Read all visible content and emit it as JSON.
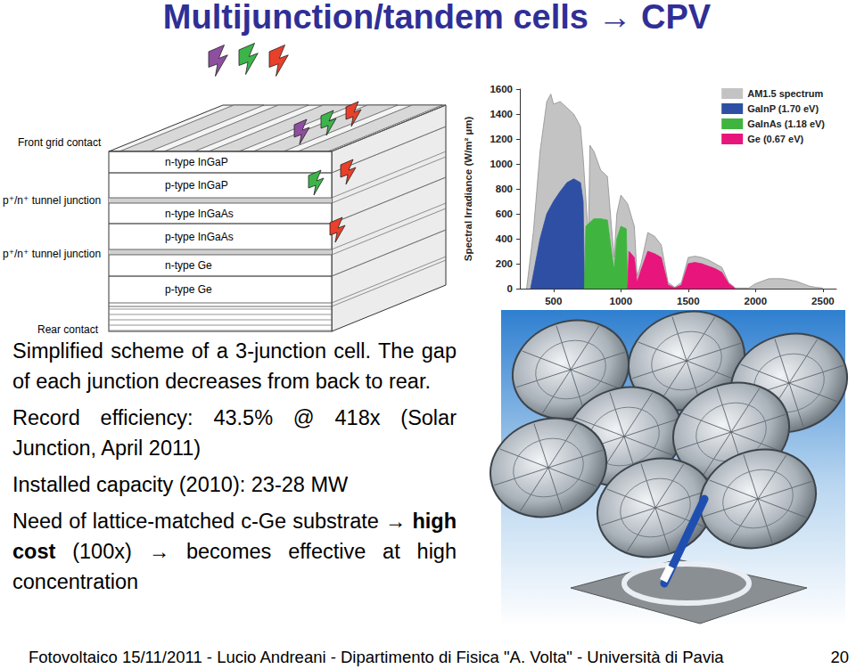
{
  "title": "Multijunction/tandem cells → CPV",
  "diagram": {
    "layers": [
      "n-type InGaP",
      "p-type InGaP",
      "n-type InGaAs",
      "p-type InGaAs",
      "n-type Ge",
      "p-type Ge"
    ],
    "front_label": "Front grid contact",
    "tunnel_labels": [
      "p⁺/n⁺ tunnel junction",
      "p⁺/n⁺ tunnel junction"
    ],
    "rear_label": "Rear contact"
  },
  "text": {
    "paragraphs": [
      [
        "Simplified scheme of a 3-junction cell. The gap of each junction decreases from back to rear."
      ],
      [
        "Record efficiency: 43.5% @ 418x (Solar Junction, April 2011)"
      ],
      [
        "Installed capacity (2010): 23-28 MW"
      ],
      [
        "Need of lattice-matched c-Ge substrate → ",
        {
          "bold": "high cost"
        },
        " (100x) → becomes effective at high concentration"
      ]
    ]
  },
  "chart_data": {
    "type": "area",
    "ylabel": "Spectral Irradiance (W/m² µm)",
    "xlim": [
      250,
      2600
    ],
    "xticks": [
      500,
      1000,
      1500,
      2000,
      2500
    ],
    "ylim": [
      0,
      1600
    ],
    "yticks": [
      0,
      200,
      400,
      600,
      800,
      1000,
      1200,
      1400,
      1600
    ],
    "grid": false,
    "legend": "upper right",
    "series": [
      {
        "name": "AM1.5 spectrum",
        "color": "#c3c3c3",
        "x": [
          300,
          350,
          400,
          450,
          480,
          500,
          550,
          600,
          650,
          700,
          720,
          760,
          770,
          800,
          850,
          900,
          930,
          950,
          970,
          1000,
          1050,
          1100,
          1120,
          1150,
          1200,
          1250,
          1300,
          1350,
          1400,
          1450,
          1500,
          1550,
          1600,
          1650,
          1700,
          1750,
          1800,
          1850,
          1950,
          2000,
          2050,
          2100,
          2200,
          2300,
          2350,
          2400,
          2450,
          2500
        ],
        "values": [
          0,
          450,
          1100,
          1500,
          1560,
          1480,
          1500,
          1450,
          1400,
          1300,
          1050,
          400,
          1150,
          1100,
          950,
          900,
          500,
          250,
          600,
          750,
          680,
          500,
          100,
          200,
          450,
          420,
          350,
          50,
          10,
          50,
          250,
          260,
          250,
          230,
          200,
          170,
          50,
          5,
          5,
          40,
          60,
          80,
          80,
          60,
          40,
          20,
          10,
          5
        ]
      },
      {
        "name": "GaInP (1.70 eV)",
        "color": "#2e4fa3",
        "x": [
          330,
          400,
          450,
          500,
          550,
          600,
          650,
          700,
          720,
          730
        ],
        "values": [
          0,
          400,
          600,
          700,
          780,
          850,
          880,
          850,
          700,
          0
        ]
      },
      {
        "name": "GaInAs (1.18 eV)",
        "color": "#3fb53f",
        "x": [
          730,
          740,
          800,
          850,
          900,
          930,
          950,
          970,
          1000,
          1040,
          1050
        ],
        "values": [
          0,
          500,
          560,
          560,
          550,
          300,
          150,
          400,
          500,
          480,
          0
        ]
      },
      {
        "name": "Ge (0.67 eV)",
        "color": "#e8157c",
        "x": [
          1050,
          1060,
          1100,
          1120,
          1150,
          1200,
          1250,
          1300,
          1350,
          1400,
          1450,
          1500,
          1550,
          1600,
          1650,
          1700,
          1750,
          1800,
          1850
        ],
        "values": [
          0,
          300,
          250,
          50,
          150,
          300,
          280,
          250,
          30,
          5,
          30,
          200,
          210,
          200,
          180,
          160,
          130,
          40,
          0
        ]
      }
    ]
  },
  "footer": {
    "text": "Fotovoltaico 15/11/2011 - Lucio Andreani - Dipartimento di Fisica \"A. Volta\" - Università di Pavia",
    "page": "20"
  }
}
